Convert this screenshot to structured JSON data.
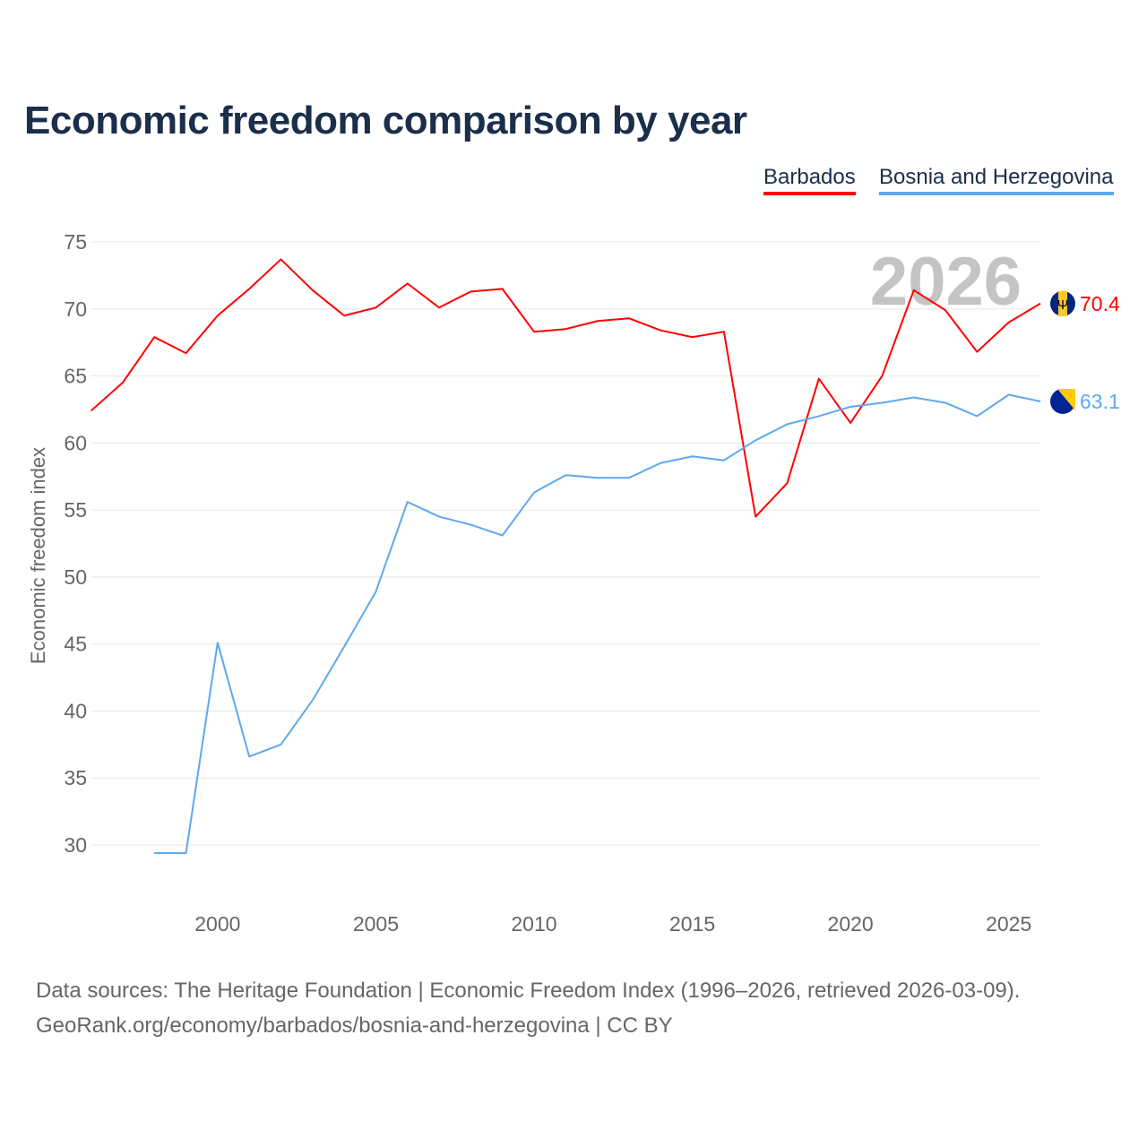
{
  "title": "Economic freedom comparison by year",
  "footer": {
    "line1": "Data sources: The Heritage Foundation | Economic Freedom Index (1996–2026, retrieved 2026-03-09).",
    "line2": "GeoRank.org/economy/barbados/bosnia-and-herzegovina | CC BY"
  },
  "chart_data": {
    "type": "line",
    "title": "Economic freedom comparison by year",
    "xlabel": "",
    "ylabel": "Economic freedom index",
    "xlim": [
      1996,
      2026
    ],
    "ylim": [
      25,
      75
    ],
    "yticks": [
      30,
      35,
      40,
      45,
      50,
      55,
      60,
      65,
      70,
      75
    ],
    "xticks": [
      2000,
      2005,
      2010,
      2015,
      2020,
      2025
    ],
    "grid": true,
    "legend_placement": "top-right",
    "year_label": "2026",
    "series": [
      {
        "name": "Barbados",
        "color": "#ff0000",
        "end_label": "70.4",
        "flag": "barbados-flag",
        "x": [
          1996,
          1997,
          1998,
          1999,
          2000,
          2001,
          2002,
          2003,
          2004,
          2005,
          2006,
          2007,
          2008,
          2009,
          2010,
          2011,
          2012,
          2013,
          2014,
          2015,
          2016,
          2017,
          2018,
          2019,
          2020,
          2021,
          2022,
          2023,
          2024,
          2025,
          2026
        ],
        "values": [
          62.4,
          64.5,
          67.9,
          66.7,
          69.5,
          71.5,
          73.7,
          71.4,
          69.5,
          70.1,
          71.9,
          70.1,
          71.3,
          71.5,
          68.3,
          68.5,
          69.1,
          69.3,
          68.4,
          67.9,
          68.3,
          54.5,
          57.0,
          64.8,
          61.5,
          65.0,
          71.4,
          69.9,
          66.8,
          69.0,
          70.4
        ]
      },
      {
        "name": "Bosnia and Herzegovina",
        "color": "#5ea8ef",
        "end_label": "63.1",
        "flag": "bosnia-flag",
        "x": [
          1998,
          1999,
          2000,
          2001,
          2002,
          2003,
          2004,
          2005,
          2006,
          2007,
          2008,
          2009,
          2010,
          2011,
          2012,
          2013,
          2014,
          2015,
          2016,
          2017,
          2018,
          2019,
          2020,
          2021,
          2022,
          2023,
          2024,
          2025,
          2026
        ],
        "values": [
          29.4,
          29.4,
          45.1,
          36.6,
          37.5,
          40.8,
          44.8,
          48.9,
          55.6,
          54.5,
          53.9,
          53.1,
          56.3,
          57.6,
          57.4,
          57.4,
          58.5,
          59.0,
          58.7,
          60.2,
          61.4,
          62.0,
          62.7,
          63.0,
          63.4,
          63.0,
          62.0,
          63.6,
          63.1
        ]
      }
    ]
  }
}
